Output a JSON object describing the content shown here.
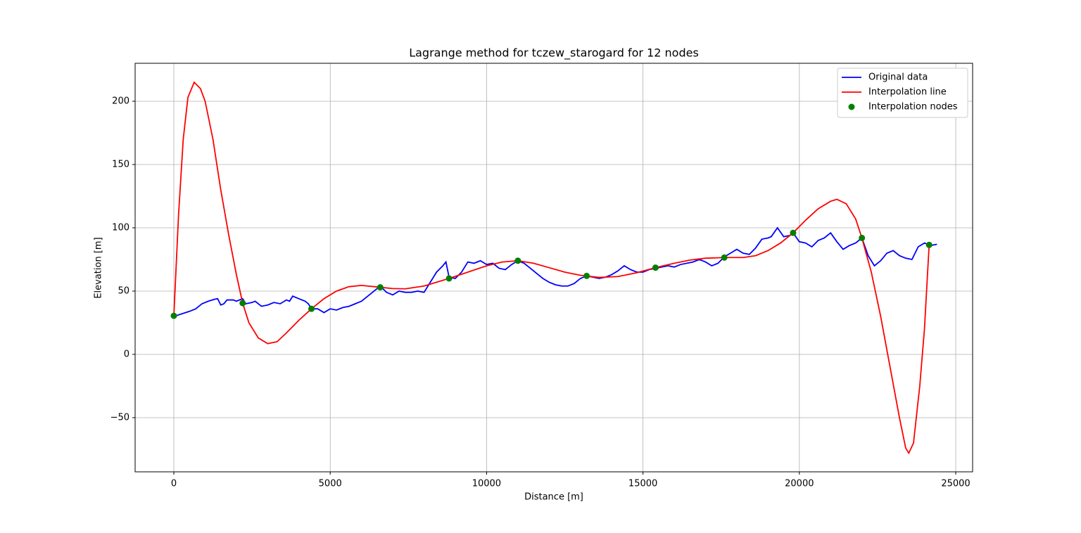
{
  "chart_data": {
    "type": "line",
    "title": "Lagrange method for tczew_starogard for 12 nodes",
    "x_label": "Distance [m]",
    "y_label": "Elevation [m]",
    "xlim": [
      -1238,
      25540
    ],
    "ylim": [
      -92.8,
      230
    ],
    "xticks": [
      0,
      5000,
      10000,
      15000,
      20000,
      25000
    ],
    "yticks": [
      {
        "value": -50,
        "label": "−50"
      },
      0,
      50,
      100,
      150,
      200
    ],
    "grid": true,
    "legend": "upper right",
    "series": [
      {
        "name": "Original data",
        "kind": "line",
        "color": "#0000ff",
        "x": [
          0,
          250,
          500,
          700,
          900,
          1100,
          1300,
          1400,
          1500,
          1600,
          1700,
          1900,
          2000,
          2200,
          2300,
          2500,
          2600,
          2800,
          3000,
          3200,
          3400,
          3600,
          3700,
          3800,
          4000,
          4200,
          4300,
          4400,
          4600,
          4800,
          5000,
          5200,
          5400,
          5600,
          5800,
          6000,
          6200,
          6400,
          6600,
          6800,
          7000,
          7200,
          7400,
          7600,
          7800,
          8000,
          8200,
          8400,
          8600,
          8700,
          8800,
          9000,
          9200,
          9400,
          9600,
          9800,
          10000,
          10200,
          10400,
          10600,
          10800,
          11000,
          11200,
          11400,
          11600,
          11800,
          12000,
          12200,
          12400,
          12600,
          12800,
          13000,
          13200,
          13400,
          13600,
          13800,
          14000,
          14200,
          14400,
          14600,
          14800,
          15000,
          15200,
          15400,
          15600,
          15800,
          16000,
          16200,
          16400,
          16600,
          16800,
          17000,
          17200,
          17400,
          17600,
          17800,
          18000,
          18200,
          18400,
          18600,
          18800,
          19000,
          19100,
          19300,
          19500,
          19700,
          19800,
          20000,
          20200,
          20400,
          20600,
          20800,
          21000,
          21200,
          21400,
          21600,
          21800,
          22000,
          22200,
          22400,
          22600,
          22800,
          23000,
          23200,
          23400,
          23600,
          23800,
          24000,
          24200,
          24400
        ],
        "values": [
          30,
          32,
          34,
          36,
          40,
          42,
          43.5,
          44,
          39,
          40,
          43,
          43,
          42,
          44,
          40,
          41,
          42,
          38,
          39,
          41,
          40,
          43,
          42,
          46,
          44,
          42,
          40,
          36,
          36,
          33,
          36,
          35,
          37,
          38,
          40,
          42,
          46,
          50,
          54,
          49,
          47,
          50,
          49,
          49,
          50,
          49,
          57,
          65,
          70,
          73,
          61,
          60,
          65,
          73,
          72,
          74,
          71,
          72,
          68,
          67,
          71,
          74,
          72,
          68,
          64,
          60,
          57,
          55,
          54,
          54,
          56,
          60,
          62,
          61,
          60,
          61,
          63,
          66,
          70,
          67,
          65,
          65,
          67,
          68,
          69,
          70,
          69,
          71,
          72,
          73,
          75,
          73,
          70,
          72,
          77,
          80,
          83,
          80,
          79,
          84,
          91,
          92,
          93,
          100,
          93,
          94,
          96,
          89,
          88,
          85,
          90,
          92,
          96,
          89,
          83,
          86,
          88,
          92,
          78,
          70,
          74,
          80,
          82,
          78,
          76,
          75,
          85,
          88,
          86,
          87
        ]
      },
      {
        "name": "Interpolation line",
        "kind": "line",
        "color": "#ff0000",
        "x": [
          0,
          150,
          300,
          450,
          650,
          850,
          1000,
          1250,
          1500,
          1750,
          2000,
          2200,
          2400,
          2700,
          3000,
          3300,
          3600,
          4000,
          4400,
          4800,
          5200,
          5600,
          6000,
          6600,
          7000,
          7400,
          8000,
          8400,
          8800,
          9400,
          10000,
          10500,
          11000,
          11500,
          12000,
          12500,
          13000,
          13600,
          14200,
          14800,
          15400,
          16000,
          16500,
          17000,
          17600,
          18200,
          18600,
          19000,
          19400,
          19800,
          20200,
          20600,
          21000,
          21200,
          21500,
          21800,
          22000,
          22300,
          22600,
          22900,
          23200,
          23400,
          23500,
          23650,
          23850,
          24000,
          24150
        ],
        "values": [
          30.5,
          110,
          170,
          203,
          215,
          210,
          200,
          170,
          130,
          95,
          63,
          40.5,
          25,
          13,
          8.5,
          10,
          17,
          27,
          36,
          44,
          50,
          53.5,
          54.5,
          53,
          52,
          51.8,
          54,
          57,
          60,
          65,
          70,
          73,
          74,
          72,
          68.5,
          65,
          62.5,
          60.8,
          61.5,
          64.5,
          68.5,
          72,
          74.5,
          76,
          76.5,
          76.5,
          78,
          82,
          88,
          96,
          106,
          115,
          121,
          122.5,
          119,
          107,
          92,
          65,
          30,
          -10,
          -50,
          -74,
          -78,
          -70,
          -25,
          20,
          86.5
        ]
      },
      {
        "name": "Interpolation nodes",
        "kind": "scatter",
        "color": "#008000",
        "x": [
          0,
          2200,
          4400,
          6600,
          8800,
          11000,
          13200,
          15400,
          17600,
          19800,
          22000,
          24150
        ],
        "values": [
          30.5,
          40.5,
          36,
          53,
          60,
          74,
          62,
          68.5,
          76.5,
          96,
          92,
          86.5
        ]
      }
    ]
  }
}
